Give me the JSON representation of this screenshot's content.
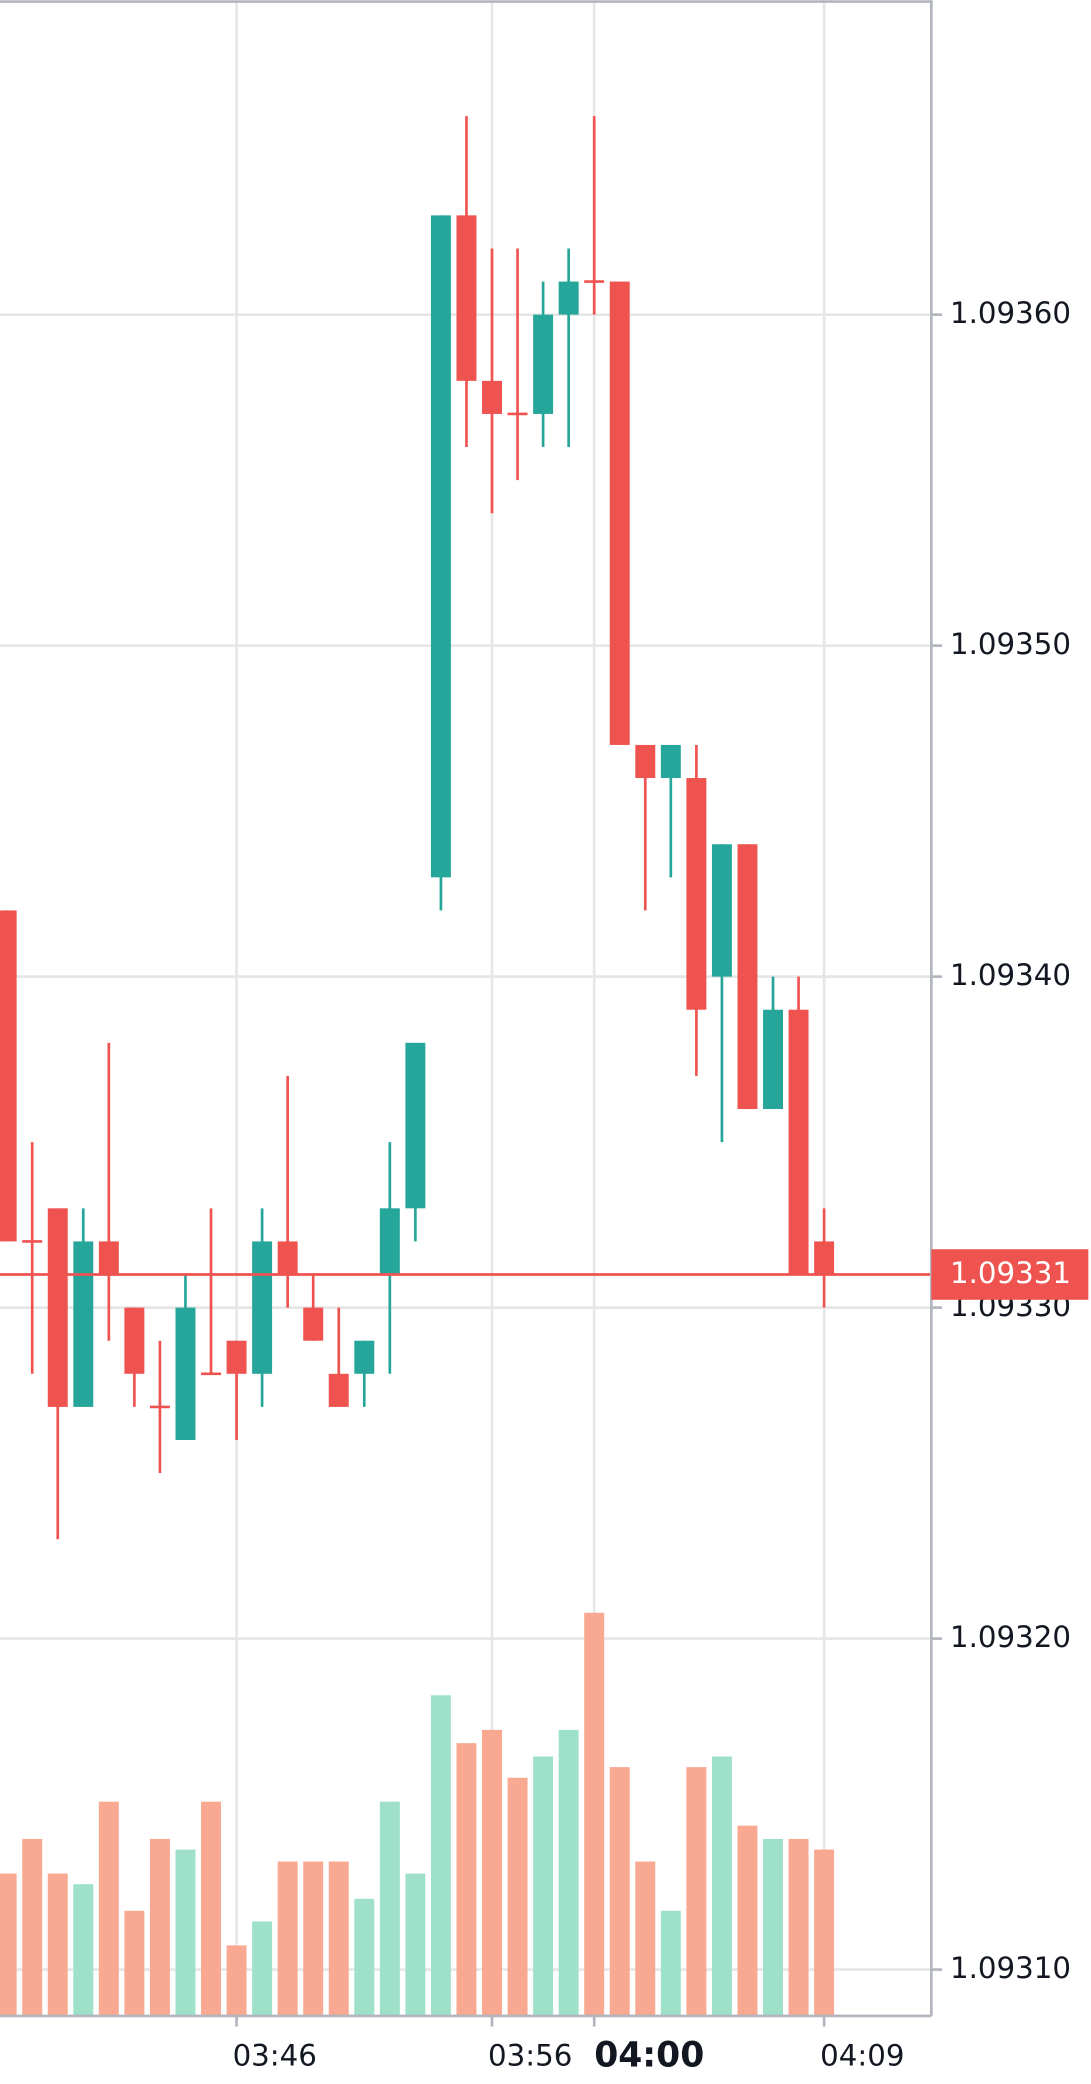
{
  "chart_data": {
    "type": "candlestick",
    "categories": [
      null,
      null,
      null,
      null,
      null,
      null,
      null,
      null,
      null,
      "03:46",
      null,
      null,
      null,
      null,
      null,
      null,
      null,
      null,
      null,
      "03:56",
      null,
      null,
      null,
      "04:00",
      null,
      null,
      null,
      null,
      null,
      null,
      null,
      null,
      "04:09"
    ],
    "bold_category_index": 23,
    "open": [
      1.09342,
      1.09332,
      1.09333,
      1.09327,
      1.09332,
      1.0933,
      1.09327,
      1.09326,
      1.09328,
      1.09329,
      1.09328,
      1.09332,
      1.0933,
      1.09328,
      1.09328,
      1.09331,
      1.09333,
      1.09343,
      1.09363,
      1.09358,
      1.09357,
      1.09357,
      1.0936,
      1.09361,
      1.09361,
      1.09347,
      1.09346,
      1.09346,
      1.0934,
      1.09344,
      1.09336,
      1.09339,
      1.09332
    ],
    "high": [
      1.09342,
      1.09335,
      1.09333,
      1.09333,
      1.09338,
      1.0933,
      1.09329,
      1.09331,
      1.09333,
      1.09329,
      1.09333,
      1.09337,
      1.09331,
      1.0933,
      1.09329,
      1.09335,
      1.09338,
      1.09363,
      1.09366,
      1.09362,
      1.09362,
      1.09361,
      1.09362,
      1.09366,
      1.09361,
      1.09347,
      1.09347,
      1.09347,
      1.09344,
      1.09344,
      1.0934,
      1.0934,
      1.09333
    ],
    "low": [
      1.09332,
      1.09328,
      1.09323,
      1.09327,
      1.09329,
      1.09327,
      1.09325,
      1.09326,
      1.09328,
      1.09326,
      1.09327,
      1.0933,
      1.09329,
      1.09327,
      1.09327,
      1.09328,
      1.09332,
      1.09342,
      1.09356,
      1.09354,
      1.09355,
      1.09356,
      1.09356,
      1.0936,
      1.09347,
      1.09342,
      1.09343,
      1.09337,
      1.09335,
      1.09336,
      1.09336,
      1.09331,
      1.0933
    ],
    "close": [
      1.09332,
      1.09332,
      1.09327,
      1.09332,
      1.09331,
      1.09328,
      1.09327,
      1.0933,
      1.09328,
      1.09328,
      1.09332,
      1.09331,
      1.09329,
      1.09327,
      1.09329,
      1.09333,
      1.09338,
      1.09363,
      1.09358,
      1.09357,
      1.09357,
      1.0936,
      1.09361,
      1.09361,
      1.09347,
      1.09346,
      1.09347,
      1.09339,
      1.09344,
      1.09336,
      1.09339,
      1.09331,
      1.09331
    ],
    "volume": [
      107,
      133,
      107,
      99,
      161,
      79,
      133,
      125,
      161,
      53,
      71,
      116,
      116,
      116,
      88,
      161,
      107,
      241,
      205,
      215,
      179,
      195,
      215,
      303,
      187,
      116,
      79,
      187,
      195,
      143,
      133,
      133,
      125
    ],
    "up_color": "#26a69a",
    "down_color": "#ef5350",
    "volume_up_color": "#9ee0ca",
    "volume_down_color": "#f9a891",
    "ylim": [
      1.093086,
      1.093695
    ],
    "yticks": [
      {
        "value": 1.0931,
        "label": "1.09310"
      },
      {
        "value": 1.0932,
        "label": "1.09320"
      },
      {
        "value": 1.0933,
        "label": "1.09330"
      },
      {
        "value": 1.0934,
        "label": "1.09340"
      },
      {
        "value": 1.0935,
        "label": "1.09350"
      },
      {
        "value": 1.0936,
        "label": "1.09360"
      }
    ],
    "last_price": 1.09331,
    "grid": true
  }
}
